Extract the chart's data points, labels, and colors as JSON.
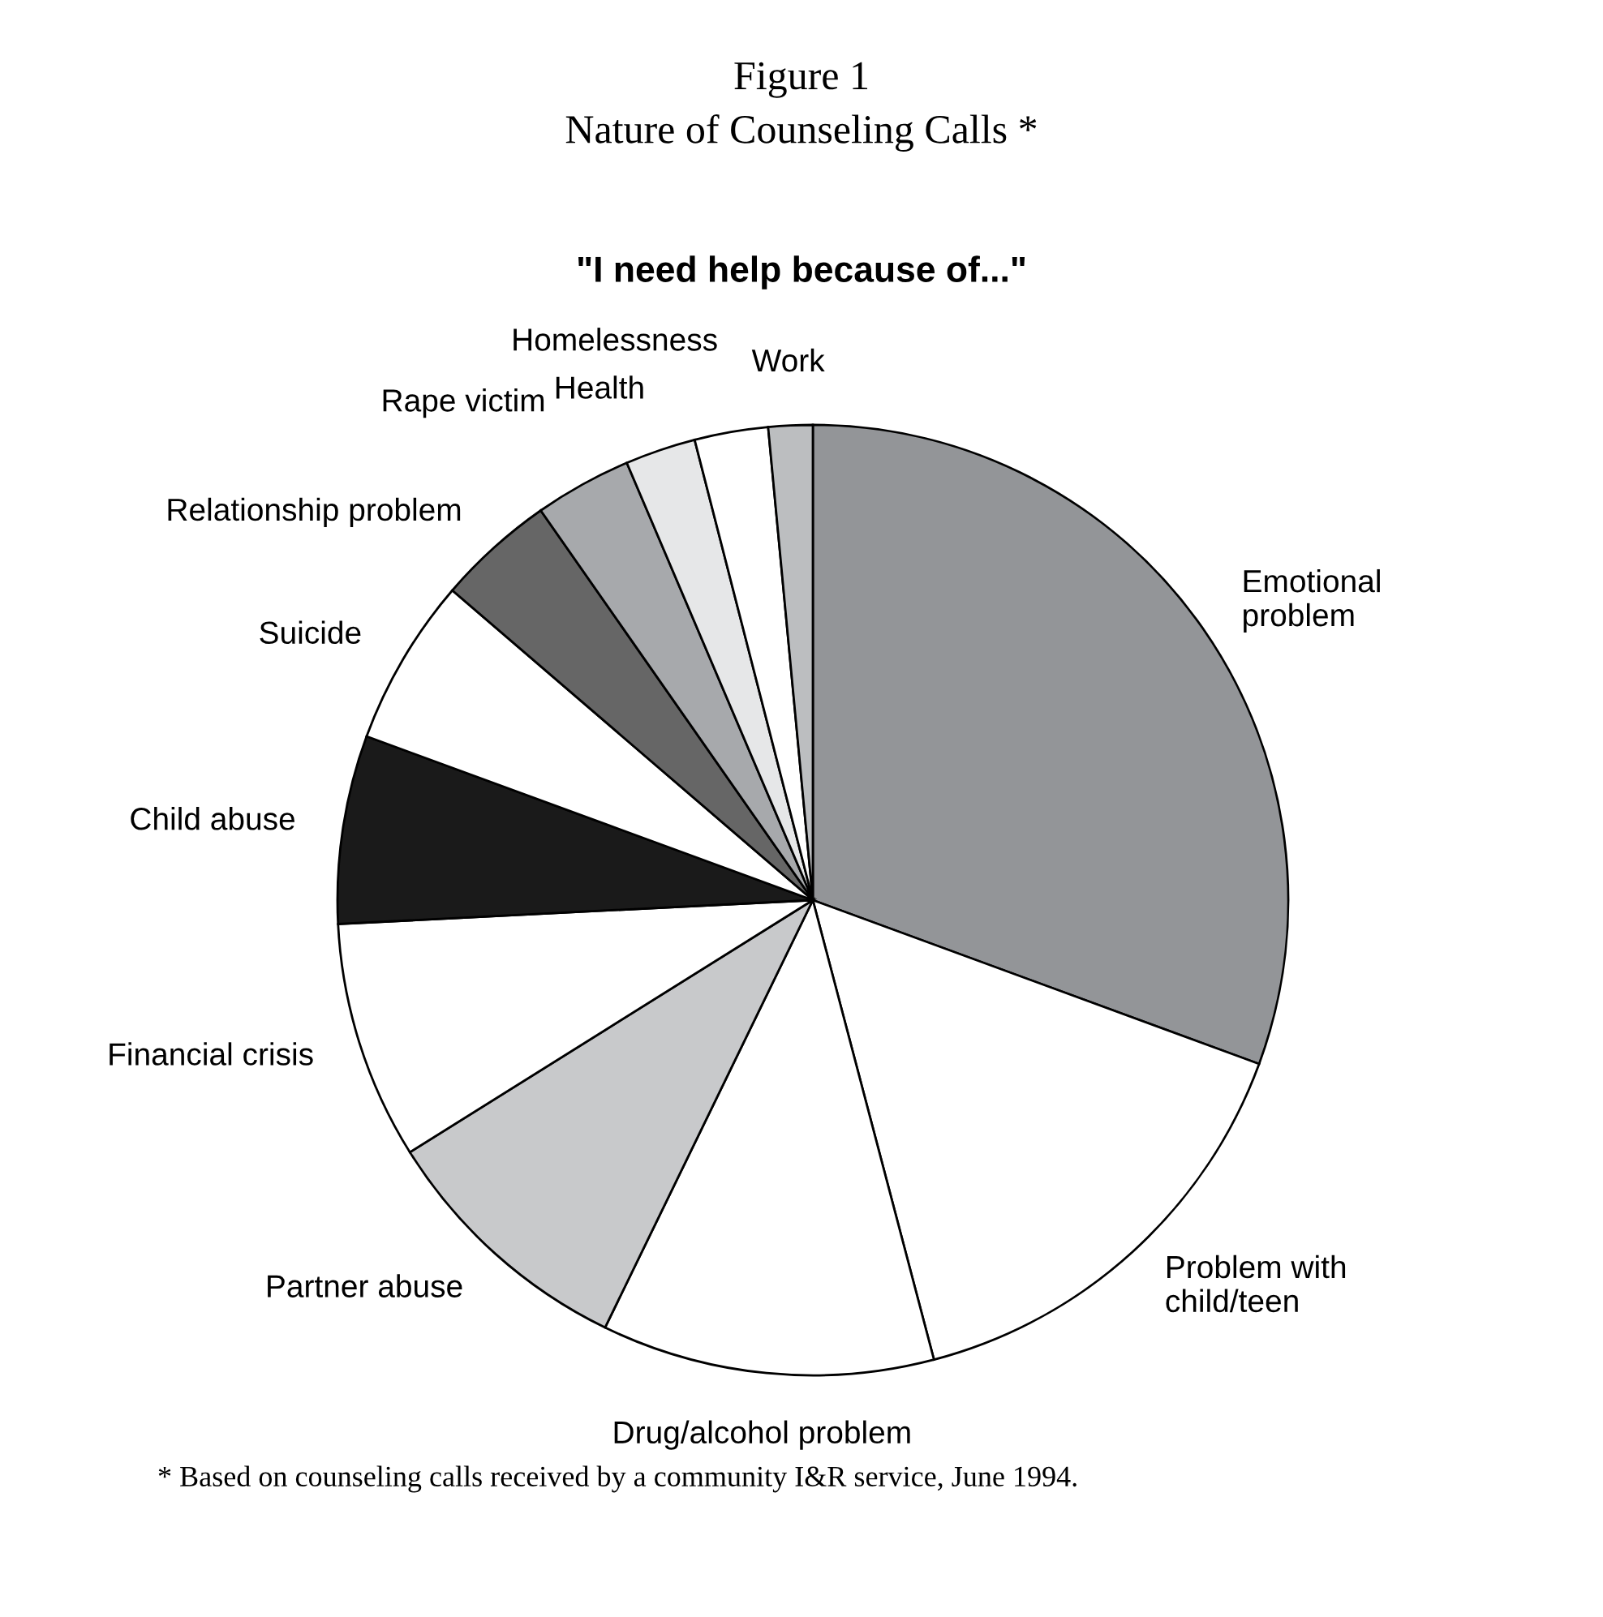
{
  "chart_data": {
    "type": "pie",
    "title": "Figure 1",
    "subtitle": "Nature of Counseling Calls *",
    "annotations": [
      "\"I need help because of...\"",
      "* Based on counseling calls received by a community I&R service, June 1994."
    ],
    "categories": [
      "Emotional\nproblem",
      "Problem with\nchild/teen",
      "Drug/alcohol problem",
      "Partner abuse",
      "Financial crisis",
      "Child abuse",
      "Suicide",
      "Relationship problem",
      "Rape victim",
      "Health",
      "Homelessness",
      "Work"
    ],
    "values": [
      30.6,
      15.3,
      11.3,
      8.9,
      8.1,
      6.4,
      5.7,
      4.0,
      3.3,
      2.4,
      2.5,
      1.5
    ],
    "colors": [
      "#939598",
      "#ffffff",
      "#ffffff",
      "#c8c9cb",
      "#ffffff",
      "#1a1a1a",
      "#ffffff",
      "#666666",
      "#a7a9ac",
      "#e6e7e8",
      "#ffffff",
      "#bcbec0"
    ]
  }
}
